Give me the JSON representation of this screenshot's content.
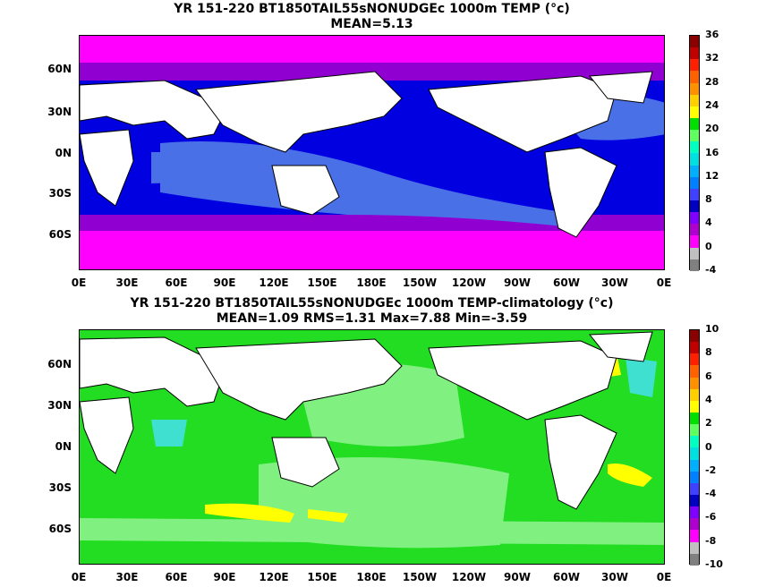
{
  "panel1": {
    "title_line1": "YR 151-220 BT1850TAIL55sNONUDGEc 1000m TEMP (°c)",
    "title_line2": "MEAN=5.13",
    "colorbar_labels": [
      "36",
      "32",
      "28",
      "24",
      "20",
      "16",
      "12",
      "8",
      "4",
      "0",
      "-4"
    ],
    "colorbar_colors": [
      "#8b0000",
      "#c00000",
      "#ff2000",
      "#ff6000",
      "#ff9000",
      "#ffd000",
      "#ffff00",
      "#00e000",
      "#60ff60",
      "#00ffc0",
      "#00e0e0",
      "#00b0ff",
      "#0080ff",
      "#4040ff",
      "#0000c0",
      "#8000ff",
      "#b000d0",
      "#ff00ff",
      "#c0c0c0",
      "#808080"
    ]
  },
  "panel2": {
    "title_line1": "YR 151-220 BT1850TAIL55sNONUDGEc 1000m TEMP-climatology (°c)",
    "title_line2": "MEAN=1.09   RMS=1.31   Max=7.88   Min=-3.59",
    "colorbar_labels": [
      "10",
      "8",
      "6",
      "4",
      "2",
      "0",
      "-2",
      "-4",
      "-6",
      "-8",
      "-10"
    ],
    "colorbar_colors": [
      "#8b0000",
      "#c00000",
      "#ff2000",
      "#ff6000",
      "#ff9000",
      "#ffd000",
      "#ffff00",
      "#00e000",
      "#60ff60",
      "#00ffc0",
      "#00e0e0",
      "#00b0ff",
      "#0080ff",
      "#4040ff",
      "#0000c0",
      "#8000ff",
      "#b000d0",
      "#ff00ff",
      "#c0c0c0",
      "#808080"
    ]
  },
  "lat_labels": [
    "60N",
    "30N",
    "0N",
    "30S",
    "60S"
  ],
  "lon_labels": [
    "0E",
    "30E",
    "60E",
    "90E",
    "120E",
    "150E",
    "180E",
    "150W",
    "120W",
    "90W",
    "60W",
    "30W",
    "0E"
  ]
}
